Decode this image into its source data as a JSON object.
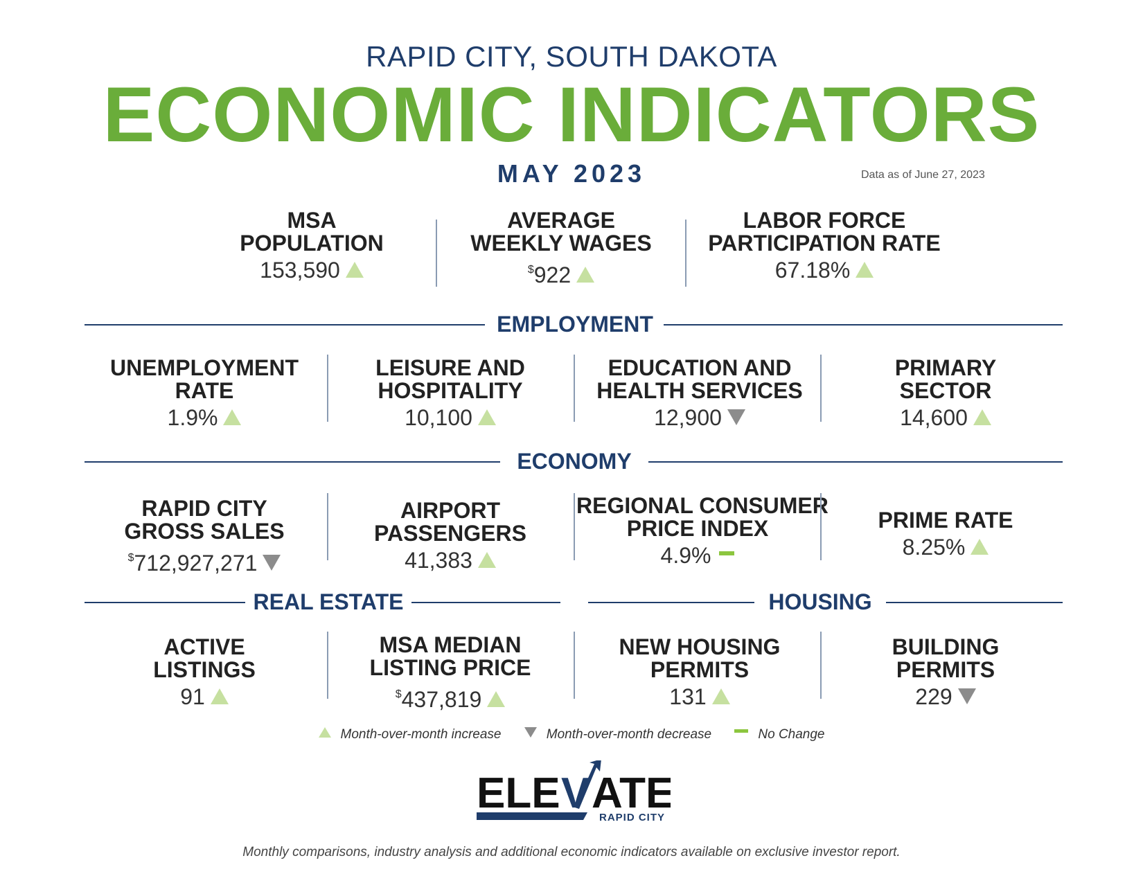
{
  "header": {
    "location": "RAPID CITY, SOUTH DAKOTA",
    "title": "ECONOMIC INDICATORS",
    "period": "MAY 2023",
    "as_of": "Data as of June 27, 2023"
  },
  "colors": {
    "navy": "#1f3d6b",
    "green": "#6aad3a",
    "increase": "#c6e0a0",
    "decrease": "#8c8c8c",
    "no_change": "#8cc63f"
  },
  "top_stats": [
    {
      "label_1": "MSA",
      "label_2": "POPULATION",
      "prefix": "",
      "value": "153,590",
      "trend": "increase"
    },
    {
      "label_1": "AVERAGE",
      "label_2": "WEEKLY WAGES",
      "prefix": "$",
      "value": "922",
      "trend": "increase"
    },
    {
      "label_1": "LABOR FORCE",
      "label_2": "PARTICIPATION RATE",
      "prefix": "",
      "value": "67.18%",
      "trend": "increase"
    }
  ],
  "employment": {
    "title": "EMPLOYMENT",
    "items": [
      {
        "label_1": "UNEMPLOYMENT",
        "label_2": "RATE",
        "prefix": "",
        "value": "1.9%",
        "trend": "increase"
      },
      {
        "label_1": "LEISURE AND",
        "label_2": "HOSPITALITY",
        "prefix": "",
        "value": "10,100",
        "trend": "increase"
      },
      {
        "label_1": "EDUCATION AND",
        "label_2": "HEALTH SERVICES",
        "prefix": "",
        "value": "12,900",
        "trend": "decrease"
      },
      {
        "label_1": "PRIMARY",
        "label_2": "SECTOR",
        "prefix": "",
        "value": "14,600",
        "trend": "increase"
      }
    ]
  },
  "economy": {
    "title": "ECONOMY",
    "items": [
      {
        "label_1": "RAPID CITY",
        "label_2": "GROSS SALES",
        "prefix": "$",
        "value": "712,927,271",
        "trend": "decrease"
      },
      {
        "label_1": "AIRPORT",
        "label_2": "PASSENGERS",
        "prefix": "",
        "value": "41,383",
        "trend": "increase"
      },
      {
        "label_1": "REGIONAL CONSUMER",
        "label_2": "PRICE INDEX",
        "prefix": "",
        "value": "4.9%",
        "trend": "no change"
      },
      {
        "label_1": "PRIME RATE",
        "label_2": "",
        "prefix": "",
        "value": "8.25%",
        "trend": "increase"
      }
    ]
  },
  "real_estate": {
    "title": "REAL ESTATE",
    "items": [
      {
        "label_1": "ACTIVE",
        "label_2": "LISTINGS",
        "prefix": "",
        "value": "91",
        "trend": "increase"
      },
      {
        "label_1": "MSA MEDIAN",
        "label_2": "LISTING PRICE",
        "prefix": "$",
        "value": "437,819",
        "trend": "increase"
      }
    ]
  },
  "housing": {
    "title": "HOUSING",
    "items": [
      {
        "label_1": "NEW HOUSING",
        "label_2": "PERMITS",
        "prefix": "",
        "value": "131",
        "trend": "increase"
      },
      {
        "label_1": "BUILDING",
        "label_2": "PERMITS",
        "prefix": "",
        "value": "229",
        "trend": "decrease"
      }
    ]
  },
  "legend": {
    "increase": "Month-over-month increase",
    "decrease": "Month-over-month decrease",
    "no_change": "No Change"
  },
  "logo": {
    "wordmark_left": "ELE",
    "wordmark_v": "V",
    "wordmark_right": "ATE",
    "tagline": "RAPID CITY"
  },
  "footer": {
    "note": "Monthly comparisons, industry analysis and additional economic indicators available on exclusive investor report."
  }
}
